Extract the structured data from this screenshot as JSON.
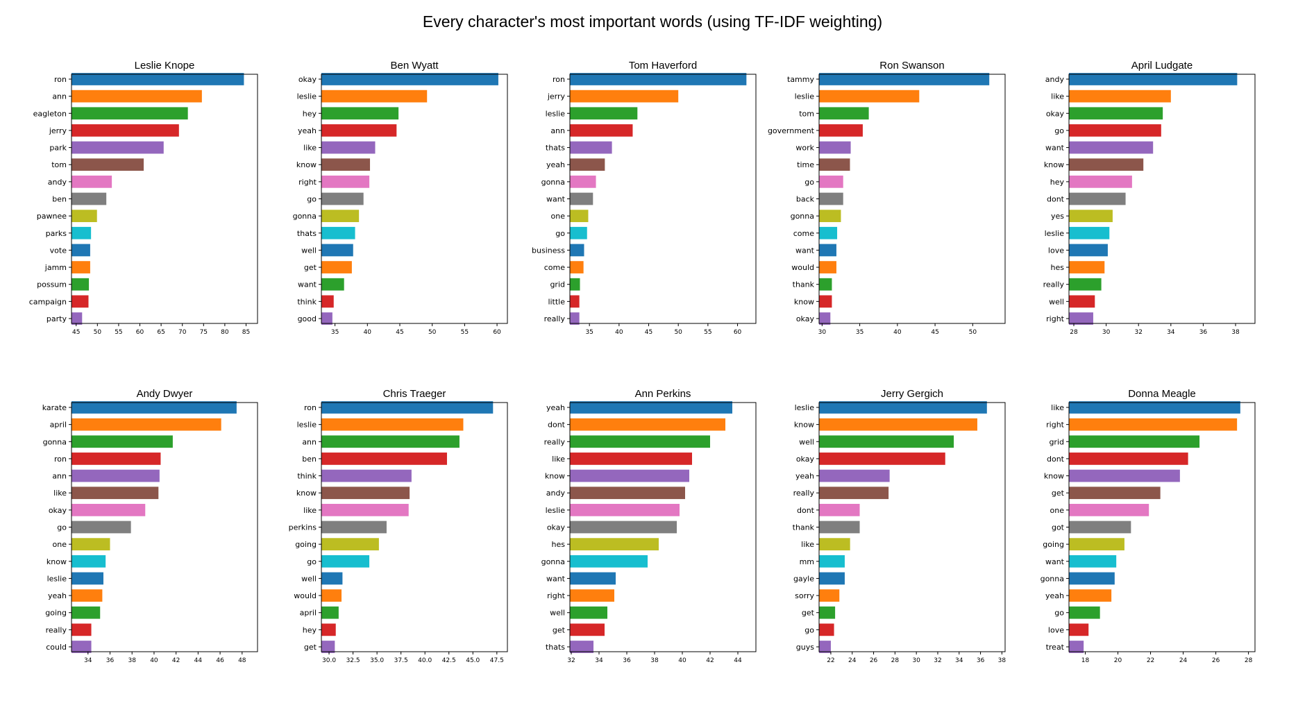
{
  "title": "Every character's most important words (using TF-IDF weighting)",
  "colors": [
    "#1f77b4",
    "#ff7f0e",
    "#2ca02c",
    "#d62728",
    "#9467bd",
    "#8c564b",
    "#e377c2",
    "#7f7f7f",
    "#bcbd22",
    "#17becf"
  ],
  "chart_data": [
    {
      "type": "bar",
      "orientation": "horizontal",
      "title": "Leslie Knope",
      "categories": [
        "ron",
        "ann",
        "eagleton",
        "jerry",
        "park",
        "tom",
        "andy",
        "ben",
        "pawnee",
        "parks",
        "vote",
        "jamm",
        "possum",
        "campaign",
        "party"
      ],
      "values": [
        84.5,
        74.6,
        71.3,
        69.2,
        65.6,
        60.9,
        53.4,
        52.1,
        49.9,
        48.5,
        48.3,
        48.3,
        48.0,
        47.9,
        46.4
      ],
      "xlim": [
        43.9,
        87.7
      ],
      "xticks": [
        45,
        50,
        55,
        60,
        65,
        70,
        75,
        80,
        85
      ]
    },
    {
      "type": "bar",
      "orientation": "horizontal",
      "title": "Ben Wyatt",
      "categories": [
        "okay",
        "leslie",
        "hey",
        "yeah",
        "like",
        "know",
        "right",
        "go",
        "gonna",
        "thats",
        "well",
        "get",
        "want",
        "think",
        "good"
      ],
      "values": [
        60.2,
        49.2,
        44.8,
        44.5,
        41.2,
        40.4,
        40.3,
        39.4,
        38.7,
        38.1,
        37.8,
        37.6,
        36.4,
        34.8,
        34.6
      ],
      "xlim": [
        32.9,
        61.6
      ],
      "xticks": [
        35,
        40,
        45,
        50,
        55,
        60
      ]
    },
    {
      "type": "bar",
      "orientation": "horizontal",
      "title": "Tom Haverford",
      "categories": [
        "ron",
        "jerry",
        "leslie",
        "ann",
        "thats",
        "yeah",
        "gonna",
        "want",
        "one",
        "go",
        "business",
        "come",
        "grid",
        "little",
        "really"
      ],
      "values": [
        61.5,
        50.0,
        43.1,
        42.3,
        38.8,
        37.6,
        36.1,
        35.6,
        34.8,
        34.6,
        34.1,
        34.0,
        33.4,
        33.3,
        33.3
      ],
      "xlim": [
        31.7,
        63.1
      ],
      "xticks": [
        35,
        40,
        45,
        50,
        55,
        60
      ]
    },
    {
      "type": "bar",
      "orientation": "horizontal",
      "title": "Ron Swanson",
      "categories": [
        "tammy",
        "leslie",
        "tom",
        "government",
        "work",
        "time",
        "go",
        "back",
        "gonna",
        "come",
        "want",
        "would",
        "thank",
        "know",
        "okay"
      ],
      "values": [
        52.2,
        42.9,
        36.2,
        35.4,
        33.8,
        33.7,
        32.8,
        32.8,
        32.5,
        32.0,
        31.9,
        31.9,
        31.3,
        31.3,
        31.1
      ],
      "xlim": [
        29.6,
        54.3
      ],
      "xticks": [
        30,
        35,
        40,
        45,
        50
      ]
    },
    {
      "type": "bar",
      "orientation": "horizontal",
      "title": "April Ludgate",
      "categories": [
        "andy",
        "like",
        "okay",
        "go",
        "want",
        "know",
        "hey",
        "dont",
        "yes",
        "leslie",
        "love",
        "hes",
        "really",
        "well",
        "right"
      ],
      "values": [
        38.1,
        34.0,
        33.5,
        33.4,
        32.9,
        32.3,
        31.6,
        31.2,
        30.4,
        30.2,
        30.1,
        29.9,
        29.7,
        29.3,
        29.2
      ],
      "xlim": [
        27.7,
        39.2
      ],
      "xticks": [
        28,
        30,
        32,
        34,
        36,
        38
      ]
    },
    {
      "type": "bar",
      "orientation": "horizontal",
      "title": "Andy Dwyer",
      "categories": [
        "karate",
        "april",
        "gonna",
        "ron",
        "ann",
        "like",
        "okay",
        "go",
        "one",
        "know",
        "leslie",
        "yeah",
        "going",
        "really",
        "could"
      ],
      "values": [
        47.5,
        46.1,
        41.7,
        40.6,
        40.5,
        40.4,
        39.2,
        37.9,
        36.0,
        35.6,
        35.4,
        35.3,
        35.1,
        34.3,
        34.3
      ],
      "xlim": [
        32.5,
        49.4
      ],
      "xticks": [
        34,
        36,
        38,
        40,
        42,
        44,
        46,
        48
      ]
    },
    {
      "type": "bar",
      "orientation": "horizontal",
      "title": "Chris Traeger",
      "categories": [
        "ron",
        "leslie",
        "ann",
        "ben",
        "think",
        "know",
        "like",
        "perkins",
        "going",
        "go",
        "well",
        "would",
        "april",
        "hey",
        "get"
      ],
      "values": [
        47.1,
        44.0,
        43.6,
        42.3,
        38.6,
        38.4,
        38.3,
        36.0,
        35.2,
        34.2,
        31.4,
        31.3,
        31.0,
        30.7,
        30.6
      ],
      "xlim": [
        29.2,
        48.6
      ],
      "xticks": [
        30.0,
        32.5,
        35.0,
        37.5,
        40.0,
        42.5,
        45.0,
        47.5
      ],
      "xtick_labels": [
        "30.0",
        "32.5",
        "35.0",
        "37.5",
        "40.0",
        "42.5",
        "45.0",
        "47.5"
      ]
    },
    {
      "type": "bar",
      "orientation": "horizontal",
      "title": "Ann Perkins",
      "categories": [
        "yeah",
        "dont",
        "really",
        "like",
        "know",
        "andy",
        "leslie",
        "okay",
        "hes",
        "gonna",
        "want",
        "right",
        "well",
        "get",
        "thats"
      ],
      "values": [
        43.6,
        43.1,
        42.0,
        40.7,
        40.5,
        40.2,
        39.8,
        39.6,
        38.3,
        37.5,
        35.2,
        35.1,
        34.6,
        34.4,
        33.6
      ],
      "xlim": [
        31.9,
        45.3
      ],
      "xticks": [
        32,
        34,
        36,
        38,
        40,
        42,
        44
      ]
    },
    {
      "type": "bar",
      "orientation": "horizontal",
      "title": "Jerry Gergich",
      "categories": [
        "leslie",
        "know",
        "well",
        "okay",
        "yeah",
        "really",
        "dont",
        "thank",
        "like",
        "mm",
        "gayle",
        "sorry",
        "get",
        "go",
        "guys"
      ],
      "values": [
        36.6,
        35.7,
        33.5,
        32.7,
        27.5,
        27.4,
        24.7,
        24.7,
        23.8,
        23.3,
        23.3,
        22.8,
        22.4,
        22.3,
        22.0
      ],
      "xlim": [
        20.9,
        38.3
      ],
      "xticks": [
        22,
        24,
        26,
        28,
        30,
        32,
        34,
        36,
        38
      ]
    },
    {
      "type": "bar",
      "orientation": "horizontal",
      "title": "Donna Meagle",
      "categories": [
        "like",
        "right",
        "grid",
        "dont",
        "know",
        "get",
        "one",
        "got",
        "going",
        "want",
        "gonna",
        "yeah",
        "go",
        "love",
        "treat"
      ],
      "values": [
        27.5,
        27.3,
        25.0,
        24.3,
        23.8,
        22.6,
        21.9,
        20.8,
        20.4,
        19.9,
        19.8,
        19.6,
        18.9,
        18.2,
        17.9
      ],
      "xlim": [
        17.0,
        28.4
      ],
      "xticks": [
        18,
        20,
        22,
        24,
        26,
        28
      ]
    }
  ]
}
